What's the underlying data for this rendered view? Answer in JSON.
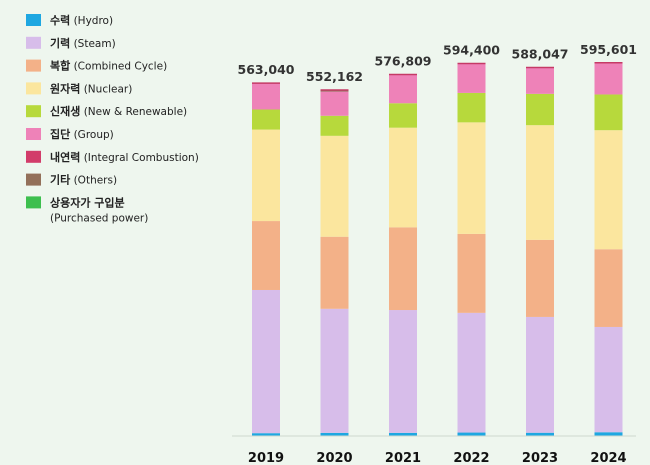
{
  "chart_data": {
    "type": "bar",
    "stacked": true,
    "title": "",
    "xlabel": "",
    "ylabel": "",
    "legend_position": "left",
    "grid": false,
    "categories": [
      "2019",
      "2020",
      "2021",
      "2022",
      "2023",
      "2024"
    ],
    "totals": [
      "563,040",
      "552,162",
      "576,809",
      "594,400",
      "588,047",
      "595,601"
    ],
    "total_values": [
      563040,
      552162,
      576809,
      594400,
      588047,
      595601
    ],
    "ylim": [
      0,
      600000
    ],
    "legend": [
      {
        "ko": "수력",
        "en": "(Hydro)",
        "color": "#1ea7e1"
      },
      {
        "ko": "기력",
        "en": "(Steam)",
        "color": "#d7bdea"
      },
      {
        "ko": "복합",
        "en": "(Combined Cycle)",
        "color": "#f3b188"
      },
      {
        "ko": "원자력",
        "en": "(Nuclear)",
        "color": "#fbe69e"
      },
      {
        "ko": "신재생",
        "en": "(New & Renewable)",
        "color": "#b7d93c"
      },
      {
        "ko": "집단",
        "en": "(Group)",
        "color": "#ee82b8"
      },
      {
        "ko": "내연력",
        "en": "(Integral Combustion)",
        "color": "#d23c6a"
      },
      {
        "ko": "기타",
        "en": "(Others)",
        "color": "#93705a"
      },
      {
        "ko": "상용자가 구입분",
        "en": "(Purchased power)",
        "color": "#3dbf4e"
      }
    ],
    "series": [
      {
        "name": "수력 (Hydro)",
        "values": [
          4500,
          5000,
          5000,
          5500,
          5200,
          6000
        ]
      },
      {
        "name": "기력 (Steam)",
        "values": [
          228500,
          198000,
          196000,
          191000,
          184800,
          168000
        ]
      },
      {
        "name": "복합 (Combined Cycle)",
        "values": [
          110000,
          115000,
          132000,
          126000,
          123000,
          124000
        ]
      },
      {
        "name": "원자력 (Nuclear)",
        "values": [
          146000,
          161000,
          159000,
          178000,
          183000,
          190000
        ]
      },
      {
        "name": "신재생 (New & Renewable)",
        "values": [
          32000,
          32000,
          39000,
          47000,
          50000,
          57000
        ]
      },
      {
        "name": "집단 (Group)",
        "values": [
          42040,
          38662,
          45809,
          46900,
          42047,
          50601
        ]
      },
      {
        "name": "내연력 (Integral Combustion)",
        "values": [
          0,
          0,
          0,
          0,
          0,
          0
        ]
      },
      {
        "name": "기타 (Others)",
        "values": [
          0,
          2500,
          0,
          0,
          0,
          0
        ]
      },
      {
        "name": "상용자가 구입분 (Purchased power)",
        "values": [
          0,
          0,
          0,
          0,
          0,
          0
        ]
      }
    ]
  }
}
